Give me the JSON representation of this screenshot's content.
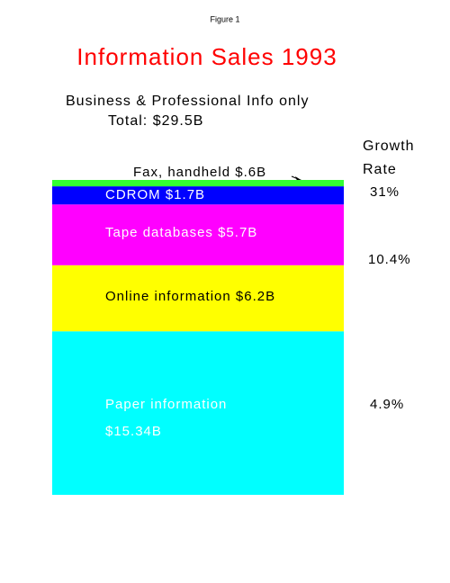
{
  "chart_data": {
    "type": "stacked-bar",
    "caption": "Figure 1",
    "title": "Information Sales 1993",
    "subtitle": "Business & Professional Info only",
    "total_label": "Total: $29.5B",
    "growth_header": [
      "Growth",
      "Rate"
    ],
    "growth_rates": [
      "31%",
      "10.4%",
      "4.9%"
    ],
    "series": [
      {
        "name": "Paper information",
        "color": "#00ffff",
        "values": [
          15.34
        ],
        "value_labels": [
          "$15.34B"
        ]
      },
      {
        "name": "Online information",
        "color": "#ffff00",
        "values": [
          6.2
        ],
        "value_labels": [
          "$6.2B"
        ]
      },
      {
        "name": "Tape databases",
        "color": "#ff00ff",
        "values": [
          5.7
        ],
        "value_labels": [
          "$5.7B"
        ]
      },
      {
        "name": "CDROM",
        "color": "#0000ff",
        "values": [
          1.7
        ],
        "value_labels": [
          "$1.7B"
        ]
      },
      {
        "name": "Fax, handheld",
        "color": "#33ff33",
        "values": [
          0.6
        ],
        "value_labels": [
          "$.6B"
        ]
      }
    ]
  }
}
